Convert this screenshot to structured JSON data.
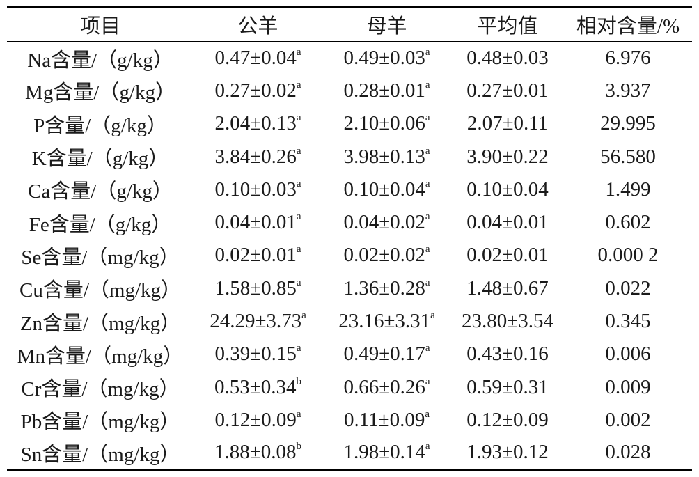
{
  "table": {
    "headers": [
      "项目",
      "公羊",
      "母羊",
      "平均值",
      "相对含量/%"
    ],
    "rows": [
      {
        "item": "Na含量/（g/kg）",
        "ram": "0.47±0.04",
        "ram_sup": "a",
        "ewe": "0.49±0.03",
        "ewe_sup": "a",
        "mean": "0.48±0.03",
        "relative": "6.976"
      },
      {
        "item": "Mg含量/（g/kg）",
        "ram": "0.27±0.02",
        "ram_sup": "a",
        "ewe": "0.28±0.01",
        "ewe_sup": "a",
        "mean": "0.27±0.01",
        "relative": "3.937"
      },
      {
        "item": "P含量/（g/kg）",
        "ram": "2.04±0.13",
        "ram_sup": "a",
        "ewe": "2.10±0.06",
        "ewe_sup": "a",
        "mean": "2.07±0.11",
        "relative": "29.995"
      },
      {
        "item": "K含量/（g/kg）",
        "ram": "3.84±0.26",
        "ram_sup": "a",
        "ewe": "3.98±0.13",
        "ewe_sup": "a",
        "mean": "3.90±0.22",
        "relative": "56.580"
      },
      {
        "item": "Ca含量/（g/kg）",
        "ram": "0.10±0.03",
        "ram_sup": "a",
        "ewe": "0.10±0.04",
        "ewe_sup": "a",
        "mean": "0.10±0.04",
        "relative": "1.499"
      },
      {
        "item": "Fe含量/（g/kg）",
        "ram": "0.04±0.01",
        "ram_sup": "a",
        "ewe": "0.04±0.02",
        "ewe_sup": "a",
        "mean": "0.04±0.01",
        "relative": "0.602"
      },
      {
        "item": "Se含量/（mg/kg）",
        "ram": "0.02±0.01",
        "ram_sup": "a",
        "ewe": "0.02±0.02",
        "ewe_sup": "a",
        "mean": "0.02±0.01",
        "relative": "0.000 2"
      },
      {
        "item": "Cu含量/（mg/kg）",
        "ram": "1.58±0.85",
        "ram_sup": "a",
        "ewe": "1.36±0.28",
        "ewe_sup": "a",
        "mean": "1.48±0.67",
        "relative": "0.022"
      },
      {
        "item": "Zn含量/（mg/kg）",
        "ram": "24.29±3.73",
        "ram_sup": "a",
        "ewe": "23.16±3.31",
        "ewe_sup": "a",
        "mean": "23.80±3.54",
        "relative": "0.345"
      },
      {
        "item": "Mn含量/（mg/kg）",
        "ram": "0.39±0.15",
        "ram_sup": "a",
        "ewe": "0.49±0.17",
        "ewe_sup": "a",
        "mean": "0.43±0.16",
        "relative": "0.006"
      },
      {
        "item": "Cr含量/（mg/kg）",
        "ram": "0.53±0.34",
        "ram_sup": "b",
        "ewe": "0.66±0.26",
        "ewe_sup": "a",
        "mean": "0.59±0.31",
        "relative": "0.009"
      },
      {
        "item": "Pb含量/（mg/kg）",
        "ram": "0.12±0.09",
        "ram_sup": "a",
        "ewe": "0.11±0.09",
        "ewe_sup": "a",
        "mean": "0.12±0.09",
        "relative": "0.002"
      },
      {
        "item": "Sn含量/（mg/kg）",
        "ram": "1.88±0.08",
        "ram_sup": "b",
        "ewe": "1.98±0.14",
        "ewe_sup": "a",
        "mean": "1.93±0.12",
        "relative": "0.028"
      }
    ]
  }
}
